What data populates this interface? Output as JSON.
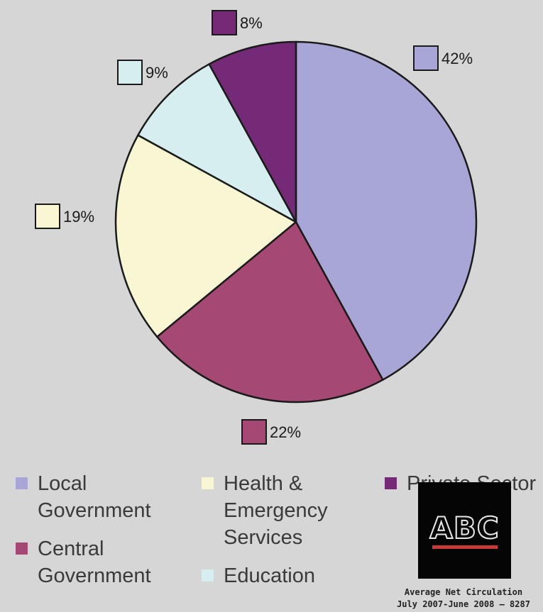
{
  "chart_data": {
    "type": "pie",
    "slices": [
      {
        "label": "Local\nGovernment",
        "value": 42,
        "display": "42%",
        "color": "#a8a6d6"
      },
      {
        "label": "Central\nGovernment",
        "value": 22,
        "display": "22%",
        "color": "#a64874"
      },
      {
        "label": "Health &\nEmergency\nServices",
        "value": 19,
        "display": "19%",
        "color": "#f8f6d3"
      },
      {
        "label": "Education",
        "value": 9,
        "display": "9%",
        "color": "#d7eef0"
      },
      {
        "label": "Private Sector",
        "value": 8,
        "display": "8%",
        "color": "#752a77"
      }
    ],
    "start_angle_deg": 0,
    "direction": "clockwise",
    "legend_position": "bottom"
  },
  "logo": {
    "text": "ABC"
  },
  "caption": {
    "line1": "Average Net Circulation",
    "line2": "July 2007-June 2008 – 8287"
  }
}
